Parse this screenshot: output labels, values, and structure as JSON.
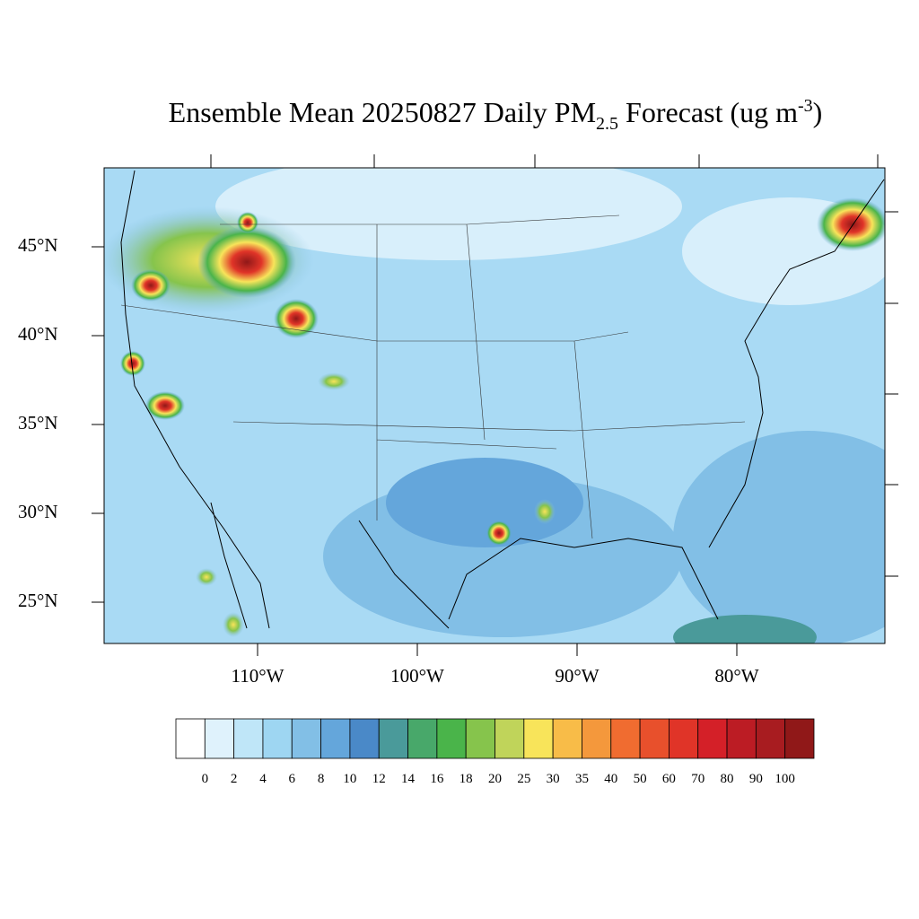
{
  "title": {
    "main": "Ensemble Mean 20250827 Daily PM",
    "sub": "2.5",
    "mid": " Forecast (ug m",
    "sup": "-3",
    "end": ")"
  },
  "map": {
    "lat_ticks": [
      {
        "value": 45,
        "label": "45°N"
      },
      {
        "value": 40,
        "label": "40°N"
      },
      {
        "value": 35,
        "label": "35°N"
      },
      {
        "value": 30,
        "label": "30°N"
      },
      {
        "value": 25,
        "label": "25°N"
      }
    ],
    "lon_ticks": [
      {
        "value": -110,
        "label": "110°W"
      },
      {
        "value": -100,
        "label": "100°W"
      },
      {
        "value": -90,
        "label": "90°W"
      },
      {
        "value": -80,
        "label": "80°W"
      }
    ]
  },
  "colorbar": {
    "levels": [
      0,
      2,
      4,
      6,
      8,
      10,
      12,
      14,
      16,
      18,
      20,
      25,
      30,
      35,
      40,
      50,
      60,
      70,
      80,
      90,
      100
    ],
    "colors": [
      "#ffffff",
      "#dff2fc",
      "#bfe6f8",
      "#9ed6f2",
      "#82bfe6",
      "#64a6db",
      "#4a89c8",
      "#4a9a9a",
      "#48a86a",
      "#4ab44a",
      "#86c44c",
      "#c0d45a",
      "#f8e45a",
      "#f8bc48",
      "#f4983c",
      "#f06c30",
      "#e8502c",
      "#e03428",
      "#d42028",
      "#bc1c24",
      "#a81c20",
      "#901818"
    ]
  }
}
